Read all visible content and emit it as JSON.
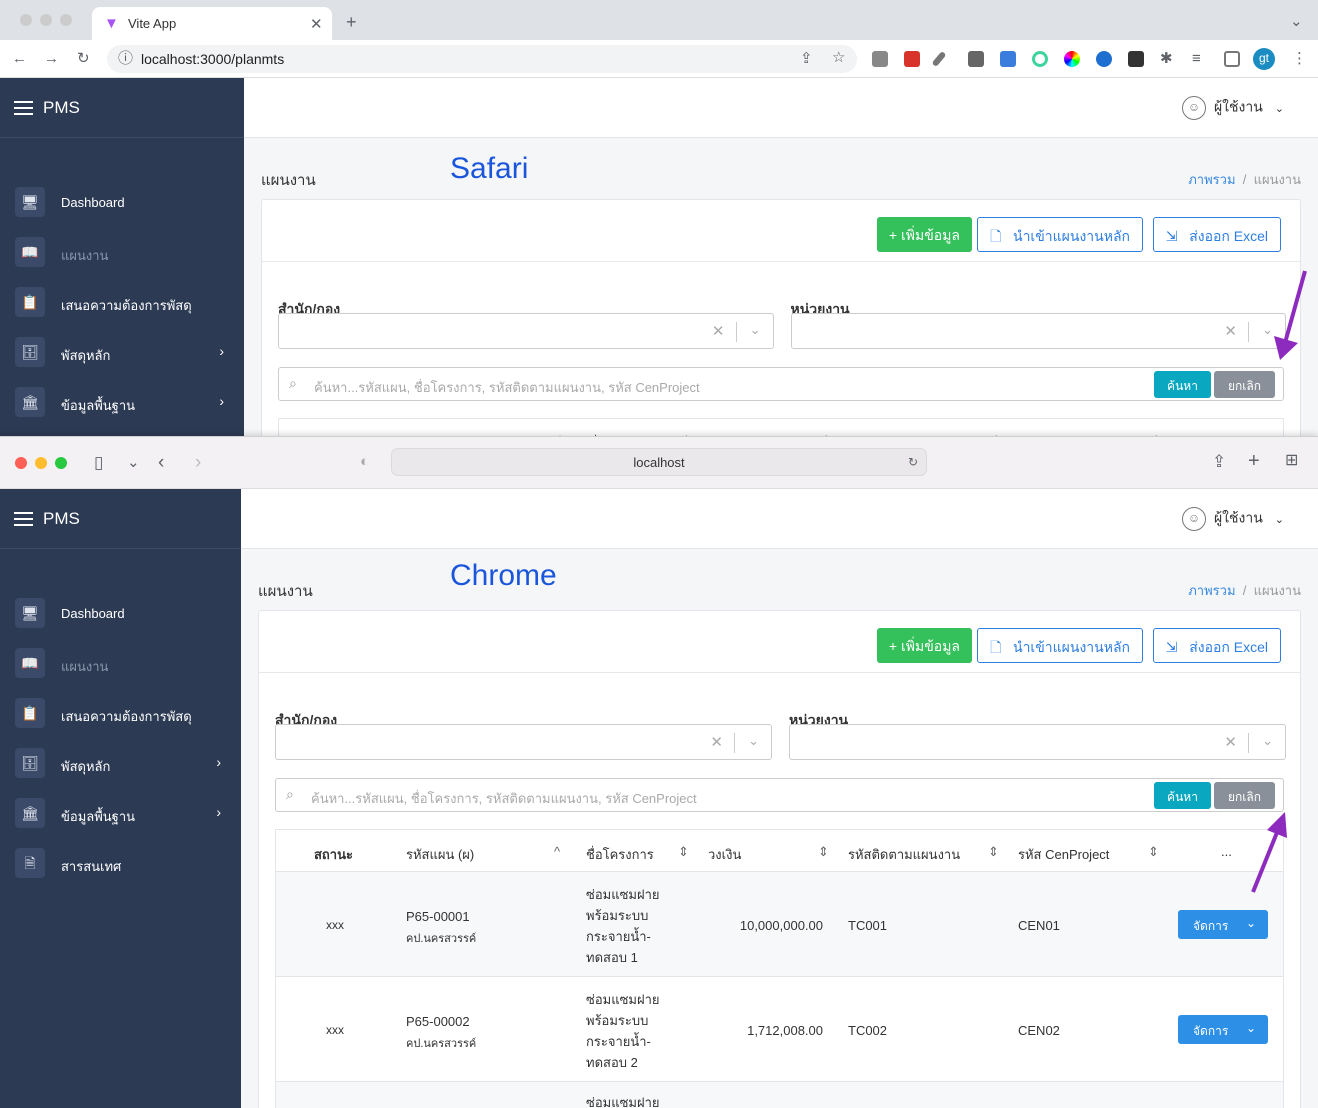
{
  "top_window": {
    "browser": "Chrome",
    "tab_title": "Vite App",
    "url": "localhost:3000/planmts",
    "annotation": "Safari",
    "extension_icons": [
      "camera-icon",
      "bug-icon",
      "eyedropper-icon",
      "facebook-icon",
      "r-icon",
      "target-icon",
      "color-wheel-icon",
      "globe-icon",
      "selenium-icon",
      "puzzle-icon",
      "media-icon",
      "sidepanel-icon"
    ],
    "profile_initials": "gt"
  },
  "bottom_window": {
    "browser": "Safari",
    "url": "localhost",
    "annotation": "Chrome"
  },
  "app": {
    "brand": "PMS",
    "user_label": "ผู้ใช้งาน",
    "page_title": "แผนงาน",
    "breadcrumb": [
      "ภาพรวม",
      "แผนงาน"
    ],
    "sidebar": [
      {
        "label": "Dashboard",
        "icon": "presentation-icon",
        "active": true
      },
      {
        "label": "แผนงาน",
        "icon": "book-icon",
        "muted": true
      },
      {
        "label": "เสนอความต้องการพัสดุ",
        "icon": "clipboard-icon"
      },
      {
        "label": "พัสดุหลัก",
        "icon": "archive-icon",
        "has_children": true
      },
      {
        "label": "ข้อมูลพื้นฐาน",
        "icon": "building-icon",
        "has_children": true
      },
      {
        "label": "สารสนเทศ",
        "icon": "document-icon"
      }
    ],
    "buttons": {
      "add": "เพิ่มข้อมูล",
      "import": "นำเข้าแผนงานหลัก",
      "export": "ส่งออก Excel"
    },
    "filters": {
      "division_label": "สำนัก/กอง",
      "unit_label": "หน่วยงาน"
    },
    "search": {
      "placeholder": "ค้นหา...รหัสแผน, ชื่อโครงการ, รหัสติดตามแผนงาน, รหัส CenProject",
      "search_button": "ค้นหา",
      "cancel_button": "ยกเลิก"
    },
    "table": {
      "columns": [
        "สถานะ",
        "รหัสแผน (ผ)",
        "ชื่อโครงการ",
        "วงเงิน",
        "รหัสติดตามแผนงาน",
        "รหัส CenProject",
        "..."
      ],
      "rows": [
        {
          "status": "xxx",
          "plan_code": "P65-00001",
          "org": "คป.นครสวรรค์",
          "project": [
            "ซ่อมแซมฝาย",
            "พร้อมระบบ",
            "กระจายน้ำ-",
            "ทดสอบ 1"
          ],
          "budget": "10,000,000.00",
          "tracking": "TC001",
          "cen": "CEN01",
          "action": "จัดการ"
        },
        {
          "status": "xxx",
          "plan_code": "P65-00002",
          "org": "คป.นครสวรรค์",
          "project": [
            "ซ่อมแซมฝาย",
            "พร้อมระบบ",
            "กระจายน้ำ-",
            "ทดสอบ 2"
          ],
          "budget": "1,712,008.00",
          "tracking": "TC002",
          "cen": "CEN02",
          "action": "จัดการ"
        },
        {
          "project": [
            "ซ่อมแซมฝาย"
          ]
        }
      ]
    }
  },
  "colors": {
    "sidebar": "#2c3a54",
    "primary": "#2d8fe6",
    "success": "#34c05a",
    "info": "#0aa8c0",
    "secondary": "#8a9099",
    "annotation": "#1a56db",
    "arrow": "#8e2bbf"
  }
}
